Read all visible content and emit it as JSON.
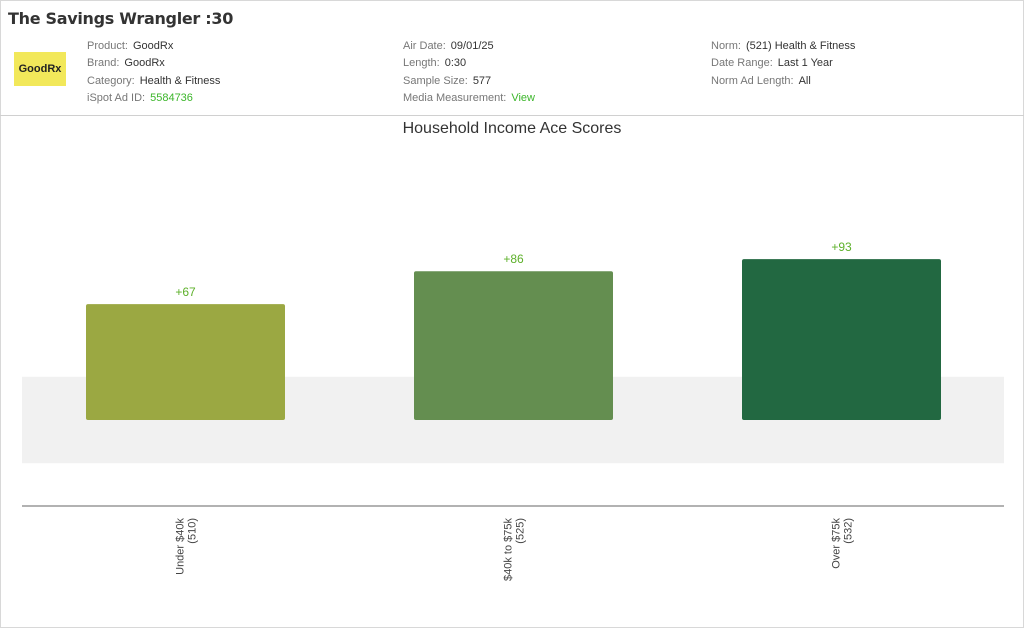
{
  "header": {
    "title": "The Savings Wrangler :30",
    "logo_text": "GoodRx",
    "col1": [
      {
        "label": "Product:",
        "value": "GoodRx"
      },
      {
        "label": "Brand:",
        "value": "GoodRx"
      },
      {
        "label": "Category:",
        "value": "Health & Fitness"
      },
      {
        "label": "iSpot Ad ID:",
        "value": "5584736",
        "link": true
      }
    ],
    "col2": [
      {
        "label": "Air Date:",
        "value": "09/01/25"
      },
      {
        "label": "Length:",
        "value": "0:30"
      },
      {
        "label": "Sample Size:",
        "value": "577"
      },
      {
        "label": "Media Measurement:",
        "value": "View",
        "link": true
      }
    ],
    "col3": [
      {
        "label": "Norm:",
        "value": "(521) Health & Fitness"
      },
      {
        "label": "Date Range:",
        "value": "Last 1 Year"
      },
      {
        "label": "Norm Ad Length:",
        "value": "All"
      }
    ]
  },
  "chart_data": {
    "type": "bar",
    "title": "Household Income Ace Scores",
    "categories": [
      "Under $40k",
      "$40k to $75k",
      "Over $75k"
    ],
    "category_counts": [
      "(510)",
      "(525)",
      "(532)"
    ],
    "values": [
      67,
      86,
      93
    ],
    "data_labels": [
      "+67",
      "+86",
      "+93"
    ],
    "colors": [
      "#9ba842",
      "#648e50",
      "#226841"
    ],
    "label_color": "#5db02a",
    "norm_band": [
      -25,
      25
    ],
    "band_color": "#f1f1f1"
  }
}
